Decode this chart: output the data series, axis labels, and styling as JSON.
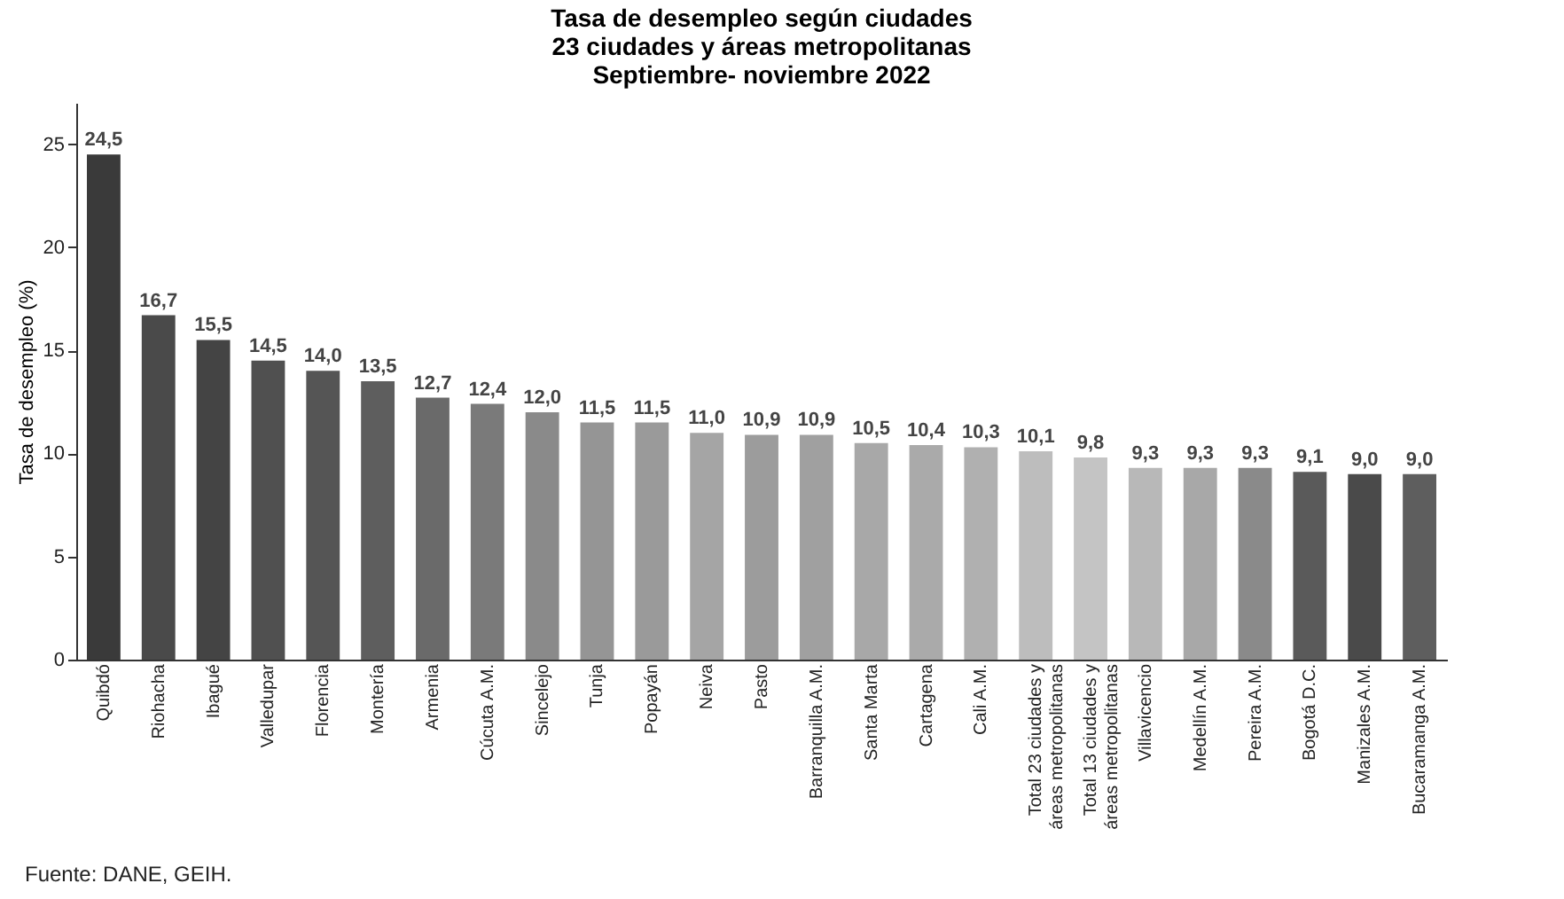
{
  "chart_data": {
    "type": "bar",
    "title": "Tasa de desempleo según ciudades",
    "subtitle": "23 ciudades y áreas metropolitanas\nSeptiembre- noviembre 2022",
    "ylabel": "Tasa de desempleo (%)",
    "categories": [
      "Quibdó",
      "Riohacha",
      "Ibagué",
      "Valledupar",
      "Florencia",
      "Montería",
      "Armenia",
      "Cúcuta A.M.",
      "Sincelejo",
      "Tunja",
      "Popayán",
      "Neiva",
      "Pasto",
      "Barranquilla A.M.",
      "Santa Marta",
      "Cartagena",
      "Cali A.M.",
      "Total 23 ciudades y áreas metropolitanas",
      "Total 13 ciudades y áreas metropolitanas",
      "Villavicencio",
      "Medellín A.M.",
      "Pereira A.M.",
      "Bogotá D.C.",
      "Manizales A.M.",
      "Bucaramanga A.M."
    ],
    "values": [
      24.5,
      16.7,
      15.5,
      14.5,
      14.0,
      13.5,
      12.7,
      12.4,
      12.0,
      11.5,
      11.5,
      11.0,
      10.9,
      10.9,
      10.5,
      10.4,
      10.3,
      10.1,
      9.8,
      9.3,
      9.3,
      9.3,
      9.1,
      9.0,
      9.0
    ],
    "value_labels": [
      "24,5",
      "16,7",
      "15,5",
      "14,5",
      "14,0",
      "13,5",
      "12,7",
      "12,4",
      "12,0",
      "11,5",
      "11,5",
      "11,0",
      "10,9",
      "10,9",
      "10,5",
      "10,4",
      "10,3",
      "10,1",
      "9,8",
      "9,3",
      "9,3",
      "9,3",
      "9,1",
      "9,0",
      "9,0"
    ],
    "colors": [
      "#3a3a3a",
      "#4a4a4a",
      "#444444",
      "#505050",
      "#555555",
      "#5e5e5e",
      "#6a6a6a",
      "#7a7a7a",
      "#8a8a8a",
      "#959595",
      "#9a9a9a",
      "#a5a5a5",
      "#9c9c9c",
      "#a0a0a0",
      "#a8a8a8",
      "#aaaaaa",
      "#b0b0b0",
      "#bdbdbd",
      "#c4c4c4",
      "#b8b8b8",
      "#a8a8a8",
      "#8a8a8a",
      "#5a5a5a",
      "#4a4a4a",
      "#5e5e5e"
    ],
    "ylim": [
      0,
      27
    ],
    "yticks": [
      0,
      5,
      10,
      15,
      20,
      25
    ],
    "annotations": [
      "Fuente: DANE, GEIH."
    ]
  }
}
